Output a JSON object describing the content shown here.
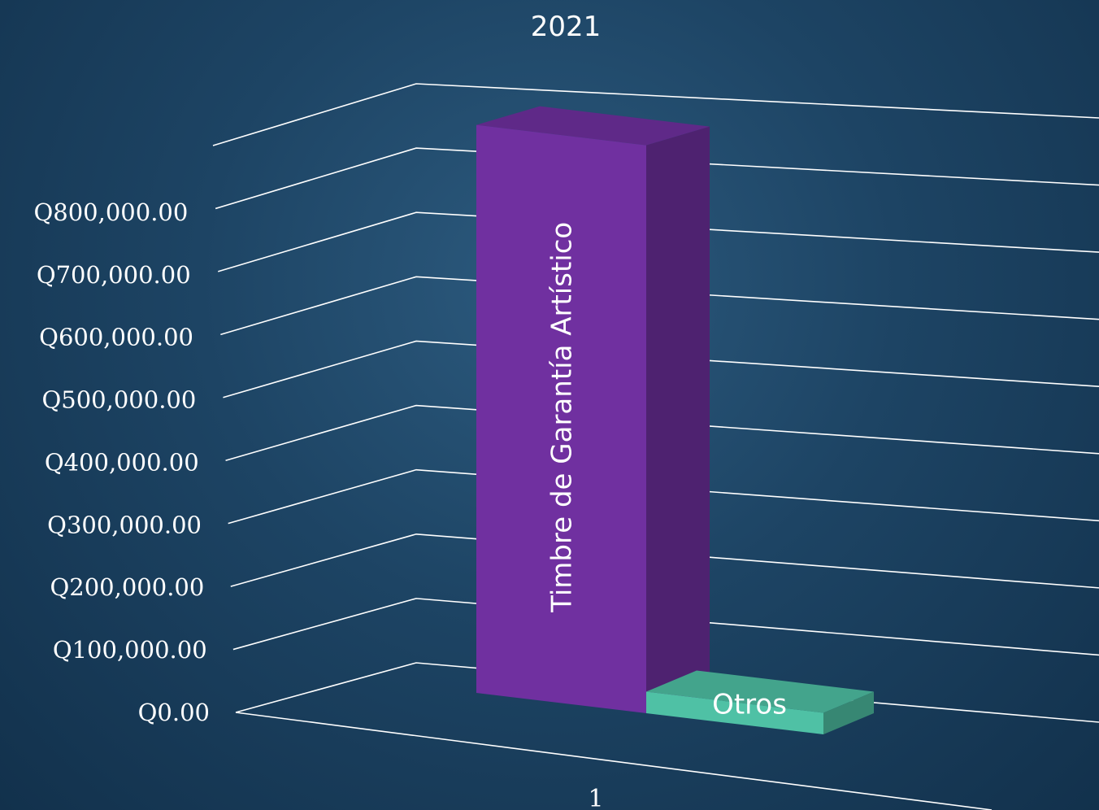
{
  "colors": {
    "background": "#1d4464",
    "grid": "#ffffff",
    "text": "#ffffff"
  },
  "chart_data": {
    "type": "bar",
    "title": "2021",
    "xlabel": "",
    "ylabel": "",
    "categories": [
      "1"
    ],
    "ylim": [
      0,
      900000
    ],
    "y_ticks": [
      0,
      100000,
      200000,
      300000,
      400000,
      500000,
      600000,
      700000,
      800000
    ],
    "y_tick_labels": [
      "Q0.00",
      "Q100,000.00",
      "Q200,000.00",
      "Q300,000.00",
      "Q400,000.00",
      "Q500,000.00",
      "Q600,000.00",
      "Q700,000.00",
      "Q800,000.00"
    ],
    "grid": true,
    "legend": "none",
    "three_d": true,
    "series": [
      {
        "name": "Timbre de Garantía Artístico",
        "values": [
          790000
        ],
        "color": "#7030a0"
      },
      {
        "name": "Otros",
        "values": [
          30000
        ],
        "color": "#4fc1a5"
      }
    ]
  }
}
